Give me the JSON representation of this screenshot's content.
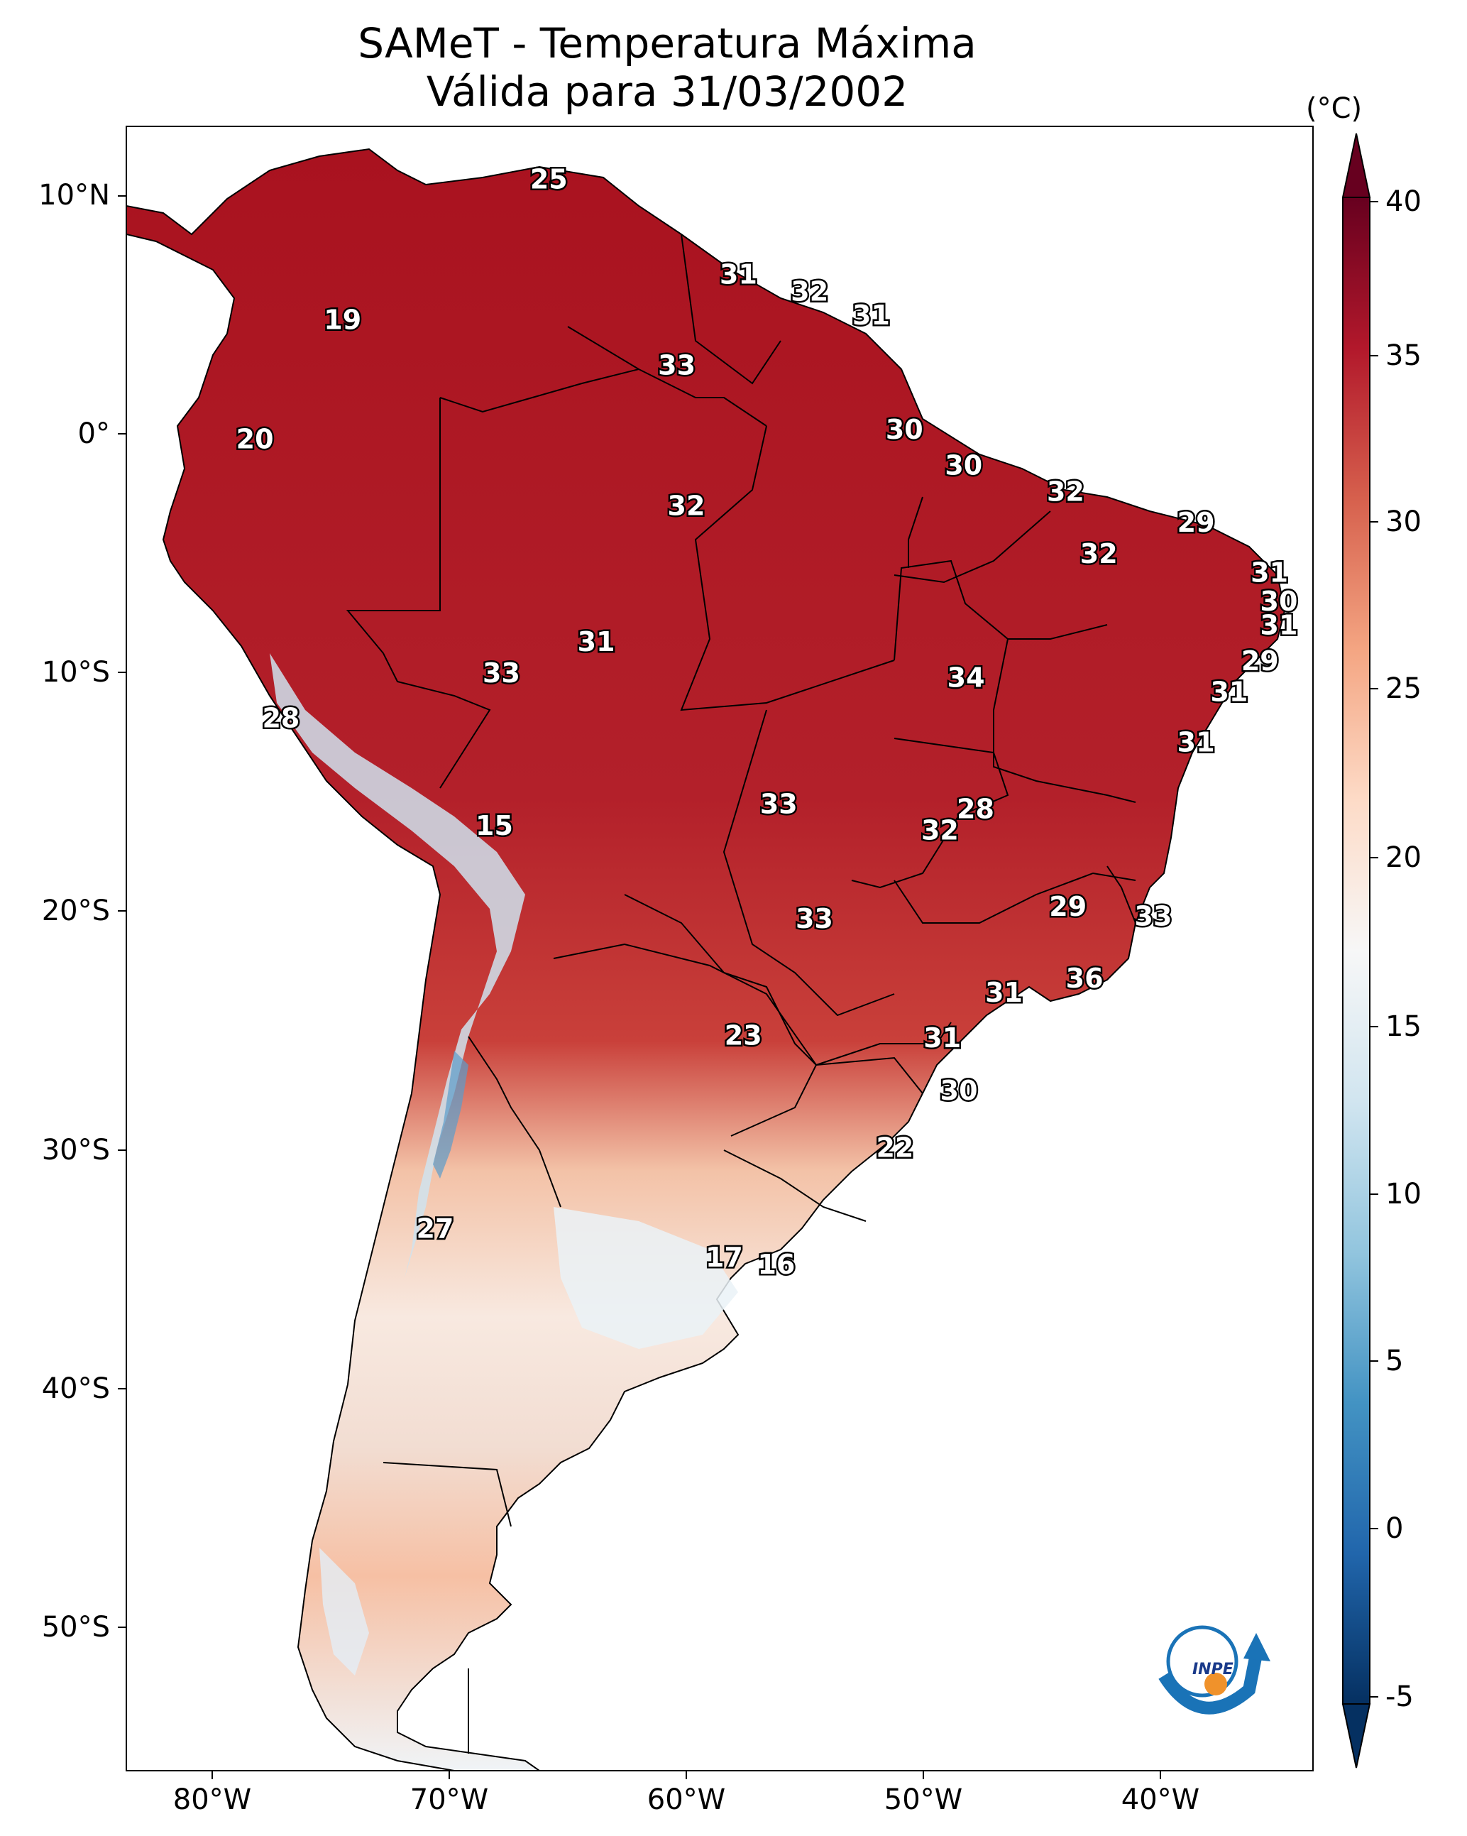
{
  "title": {
    "line1": "SAMeT - Temperatura Máxima",
    "line2": "Válida para 31/03/2002"
  },
  "axes": {
    "lat_labels": [
      "10°N",
      "0°",
      "10°S",
      "20°S",
      "30°S",
      "40°S",
      "50°S"
    ],
    "lon_labels": [
      "80°W",
      "70°W",
      "60°W",
      "50°W",
      "40°W"
    ]
  },
  "colorbar": {
    "unit": "(°C)",
    "ticks": [
      "40",
      "35",
      "30",
      "25",
      "20",
      "15",
      "10",
      "5",
      "0",
      "-5"
    ],
    "range": [
      -5,
      40
    ],
    "colors": [
      "#053061",
      "#2166ac",
      "#4393c3",
      "#92c5de",
      "#d1e5f0",
      "#f7f7f7",
      "#fddbc7",
      "#f4a582",
      "#d6604d",
      "#b2182b",
      "#67001f"
    ]
  },
  "logo": {
    "text": "INPE",
    "icon": "inpe-logo-icon"
  },
  "stations": [
    {
      "label": "25",
      "lon": -65.8,
      "lat": 10.6
    },
    {
      "label": "19",
      "lon": -74.5,
      "lat": 4.7
    },
    {
      "label": "31",
      "lon": -57.8,
      "lat": 6.6
    },
    {
      "label": "32",
      "lon": -54.8,
      "lat": 5.9
    },
    {
      "label": "31",
      "lon": -52.2,
      "lat": 4.9
    },
    {
      "label": "33",
      "lon": -60.4,
      "lat": 2.8
    },
    {
      "label": "20",
      "lon": -78.2,
      "lat": -0.3
    },
    {
      "label": "30",
      "lon": -50.8,
      "lat": 0.1
    },
    {
      "label": "30",
      "lon": -48.3,
      "lat": -1.4
    },
    {
      "label": "32",
      "lon": -60.0,
      "lat": -3.1
    },
    {
      "label": "32",
      "lon": -44.0,
      "lat": -2.5
    },
    {
      "label": "29",
      "lon": -38.5,
      "lat": -3.8
    },
    {
      "label": "32",
      "lon": -42.6,
      "lat": -5.1
    },
    {
      "label": "31",
      "lon": -35.4,
      "lat": -5.9
    },
    {
      "label": "30",
      "lon": -35.0,
      "lat": -7.1
    },
    {
      "label": "31",
      "lon": -35.0,
      "lat": -8.1
    },
    {
      "label": "31",
      "lon": -63.8,
      "lat": -8.8
    },
    {
      "label": "29",
      "lon": -35.8,
      "lat": -9.6
    },
    {
      "label": "33",
      "lon": -67.8,
      "lat": -10.1
    },
    {
      "label": "34",
      "lon": -48.2,
      "lat": -10.3
    },
    {
      "label": "31",
      "lon": -37.1,
      "lat": -10.9
    },
    {
      "label": "28",
      "lon": -77.1,
      "lat": -12.0
    },
    {
      "label": "31",
      "lon": -38.5,
      "lat": -13.0
    },
    {
      "label": "33",
      "lon": -56.1,
      "lat": -15.6
    },
    {
      "label": "28",
      "lon": -47.8,
      "lat": -15.8
    },
    {
      "label": "32",
      "lon": -49.3,
      "lat": -16.7
    },
    {
      "label": "15",
      "lon": -68.1,
      "lat": -16.5
    },
    {
      "label": "29",
      "lon": -43.9,
      "lat": -19.9
    },
    {
      "label": "33",
      "lon": -40.3,
      "lat": -20.3
    },
    {
      "label": "33",
      "lon": -54.6,
      "lat": -20.4
    },
    {
      "label": "36",
      "lon": -43.2,
      "lat": -22.9
    },
    {
      "label": "31",
      "lon": -46.6,
      "lat": -23.5
    },
    {
      "label": "23",
      "lon": -57.6,
      "lat": -25.3
    },
    {
      "label": "31",
      "lon": -49.2,
      "lat": -25.4
    },
    {
      "label": "30",
      "lon": -48.5,
      "lat": -27.6
    },
    {
      "label": "22",
      "lon": -51.2,
      "lat": -30.0
    },
    {
      "label": "27",
      "lon": -70.6,
      "lat": -33.4
    },
    {
      "label": "17",
      "lon": -58.4,
      "lat": -34.6
    },
    {
      "label": "16",
      "lon": -56.2,
      "lat": -34.9
    }
  ]
}
